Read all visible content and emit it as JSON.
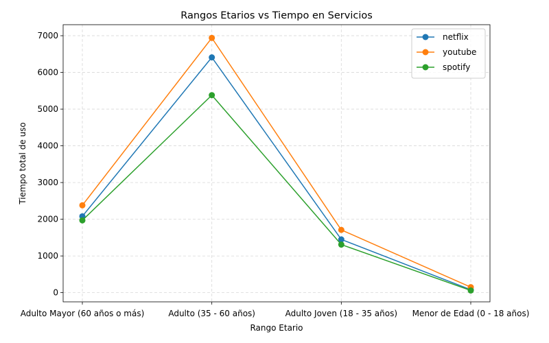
{
  "chart_data": {
    "type": "line",
    "title": "Rangos Etarios vs Tiempo en Servicios",
    "xlabel": "Rango Etario",
    "ylabel": "Tiempo total de uso",
    "categories": [
      "Adulto Mayor (60 años o más)",
      "Adulto (35 - 60 años)",
      "Adulto Joven (18 - 35 años)",
      "Menor de Edad (0 - 18 años)"
    ],
    "ylim": [
      -250,
      7300
    ],
    "yticks": [
      0,
      1000,
      2000,
      3000,
      4000,
      5000,
      6000,
      7000
    ],
    "grid": true,
    "legend_position": "top-right",
    "series": [
      {
        "name": "netflix",
        "color": "#1f77b4",
        "values": [
          2080,
          6410,
          1450,
          80
        ]
      },
      {
        "name": "youtube",
        "color": "#ff7f0e",
        "values": [
          2380,
          6940,
          1710,
          150
        ]
      },
      {
        "name": "spotify",
        "color": "#2ca02c",
        "values": [
          1970,
          5380,
          1310,
          60
        ]
      }
    ]
  }
}
